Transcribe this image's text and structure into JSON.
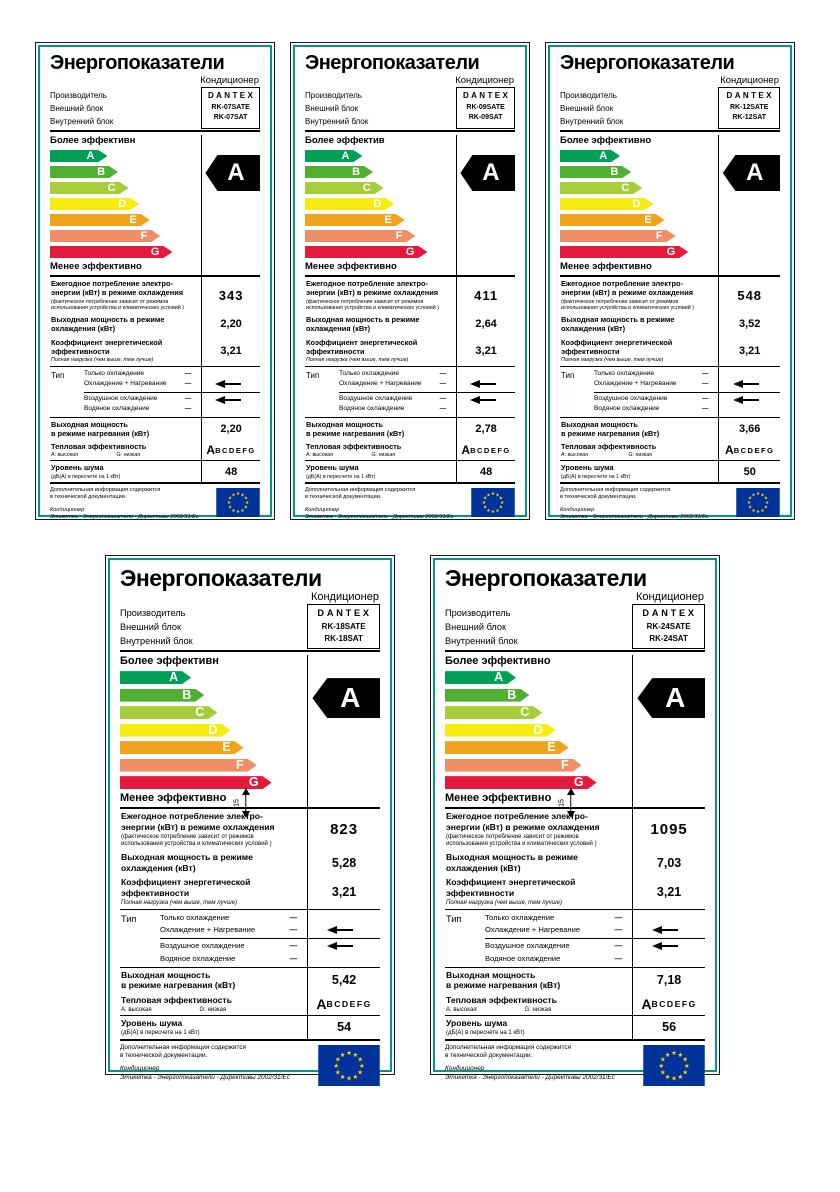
{
  "page": {
    "background": "#ffffff",
    "description": "Sheet of five Russian EU energy labels for air conditioners"
  },
  "shared": {
    "title": "Энергопоказатели",
    "subtitle": "Кондиционер",
    "manufacturer_label": "Производитель",
    "outdoor_label": "Внешний блок",
    "indoor_label": "Внутренний блок",
    "brand": "DANTEX",
    "less_efficient": "Менее эффективно",
    "rating": "A",
    "consumption_label": "Ежегодное потребление электро-\nэнергии  (кВт) в режиме охлаждения",
    "consumption_note": "(фактическое потребление зависит от режимов\nиспользования устройства и климатических условий )",
    "cooling_label": "Выходная мощность в режиме\nохлаждения  (кВт)",
    "eer_label": "Коэффициент энергетической\nэффективности",
    "eer_note": "Полная нагрузка (чем выше, тем лучше)",
    "type_label": "Тип",
    "type_only_cooling": "Только охлаждение",
    "type_cooling_heating": "Охлаждение + Нагревание",
    "type_air_cooling": "Воздушное охлаждение",
    "type_water_cooling": "Водяное охлаждение",
    "dash": "—",
    "heating_label": "Выходная мощность\nв режиме нагревания (кВт)",
    "thermal_label": "Тепловая эффективность",
    "thermal_high": "A: высокая",
    "thermal_low": "G: низкая",
    "thermal_value_main": "A",
    "thermal_value_rest": "BCDEFG",
    "noise_label": "Уровень шума",
    "noise_note": "(дБ(А) в пересчете на 1 кВт)",
    "extra_info": "Дополнительная информация содержится\nв технической документации.",
    "footer_directive": "Кондиционер\nЭтикетка - Энергопоказатели - Директивы 2002/31/Ес",
    "dim_value": "15",
    "colors": {
      "frame_teal": "#009883",
      "eu_blue": "#003399",
      "eu_star": "#FFCC00",
      "rating_arrow": "#000000"
    },
    "classes": [
      {
        "letter": "A",
        "color": "#00a156",
        "width": 38
      },
      {
        "letter": "B",
        "color": "#50ae31",
        "width": 45
      },
      {
        "letter": "C",
        "color": "#a8cd3a",
        "width": 52
      },
      {
        "letter": "D",
        "color": "#f7ec0f",
        "width": 59
      },
      {
        "letter": "E",
        "color": "#f0a31c",
        "width": 66
      },
      {
        "letter": "F",
        "color": "#ef8e67",
        "width": 73
      },
      {
        "letter": "G",
        "color": "#e41a3c",
        "width": 81
      }
    ]
  },
  "labels": [
    {
      "size": "s",
      "outdoor_model": "RK-07SATE",
      "indoor_model": "RK-07SAT",
      "more_efficient": "Более эффективн",
      "consumption": "343",
      "cooling_output": "2,20",
      "eer": "3,21",
      "heating_output": "2,20",
      "noise": "48",
      "dimension_marker": false
    },
    {
      "size": "s",
      "outdoor_model": "RK-09SATE",
      "indoor_model": "RK-09SAT",
      "more_efficient": "Более эффектив",
      "consumption": "411",
      "cooling_output": "2,64",
      "eer": "3,21",
      "heating_output": "2,78",
      "noise": "48",
      "dimension_marker": false
    },
    {
      "size": "s",
      "outdoor_model": "RK-12SATE",
      "indoor_model": "RK-12SAT",
      "more_efficient": "Более эффективно",
      "consumption": "548",
      "cooling_output": "3,52",
      "eer": "3,21",
      "heating_output": "3,66",
      "noise": "50",
      "dimension_marker": false
    },
    {
      "size": "l",
      "outdoor_model": "RK-18SATE",
      "indoor_model": "RK-18SAT",
      "more_efficient": "Более эффективн",
      "consumption": "823",
      "cooling_output": "5,28",
      "eer": "3,21",
      "heating_output": "5,42",
      "noise": "54",
      "dimension_marker": true
    },
    {
      "size": "l",
      "outdoor_model": "RK-24SATE",
      "indoor_model": "RK-24SAT",
      "more_efficient": "Более эффективно",
      "consumption": "1095",
      "cooling_output": "7,03",
      "eer": "3,21",
      "heating_output": "7,18",
      "noise": "56",
      "dimension_marker": true
    }
  ]
}
